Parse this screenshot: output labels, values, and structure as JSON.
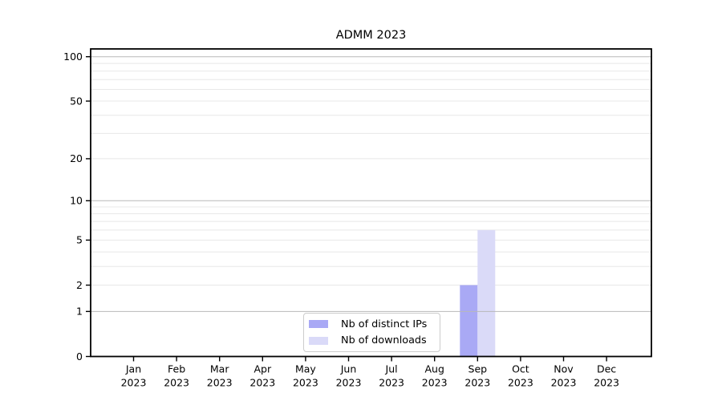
{
  "chart_data": {
    "type": "bar",
    "title": "ADMM 2023",
    "xlabel": "",
    "ylabel": "",
    "categories": [
      "Jan",
      "Feb",
      "Mar",
      "Apr",
      "May",
      "Jun",
      "Jul",
      "Aug",
      "Sep",
      "Oct",
      "Nov",
      "Dec"
    ],
    "x_year_label": "2023",
    "series": [
      {
        "name": "Nb of distinct IPs",
        "color": "#a9a9f5",
        "values": [
          0,
          0,
          0,
          0,
          0,
          0,
          0,
          0,
          2,
          0,
          0,
          0
        ]
      },
      {
        "name": "Nb of downloads",
        "color": "#dadaf8",
        "values": [
          0,
          0,
          0,
          0,
          0,
          0,
          0,
          0,
          6,
          0,
          0,
          0
        ]
      }
    ],
    "y_axis": {
      "scale": "log1p",
      "min": 0,
      "max": 100,
      "tick_labels": [
        0,
        1,
        2,
        5,
        10,
        20,
        50,
        100
      ],
      "major_gridlines": [
        1,
        10,
        100
      ],
      "minor_gridlines": [
        2,
        3,
        4,
        5,
        6,
        7,
        8,
        9,
        20,
        30,
        40,
        50,
        60,
        70,
        80,
        90
      ]
    },
    "legend": {
      "position": "lower center"
    },
    "colors": {
      "axis": "#000000",
      "tick_text": "#000000",
      "major_grid": "#b8b8b8",
      "minor_grid": "#e8e8e8",
      "background": "#ffffff"
    }
  }
}
